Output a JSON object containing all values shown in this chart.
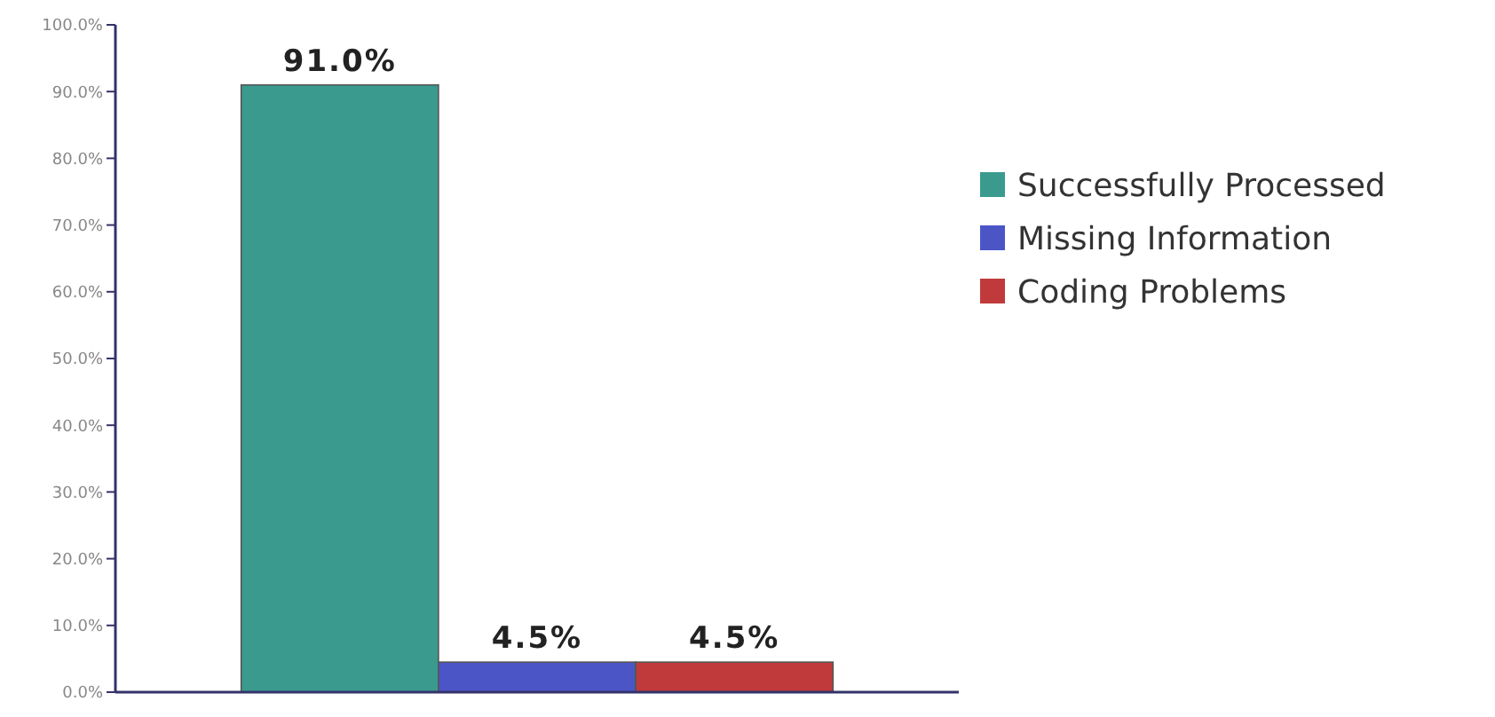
{
  "chart_data": {
    "type": "bar",
    "categories": [
      null
    ],
    "series": [
      {
        "name": "Successfully Processed",
        "color": "#3a9a8e",
        "values": [
          91.0
        ],
        "value_labels": [
          "91.0%"
        ]
      },
      {
        "name": "Missing Information",
        "color": "#4b55c6",
        "values": [
          4.5
        ],
        "value_labels": [
          "4.5%"
        ]
      },
      {
        "name": "Coding Problems",
        "color": "#c03a3c",
        "values": [
          4.5
        ],
        "value_labels": [
          "4.5%"
        ]
      }
    ],
    "ylim": [
      0,
      100
    ],
    "yticks": [
      {
        "value": 0,
        "label": "0.0%"
      },
      {
        "value": 10,
        "label": "10.0%"
      },
      {
        "value": 20,
        "label": "20.0%"
      },
      {
        "value": 30,
        "label": "30.0%"
      },
      {
        "value": 40,
        "label": "40.0%"
      },
      {
        "value": 50,
        "label": "50.0%"
      },
      {
        "value": 60,
        "label": "60.0%"
      },
      {
        "value": 70,
        "label": "70.0%"
      },
      {
        "value": 80,
        "label": "80.0%"
      },
      {
        "value": 90,
        "label": "90.0%"
      },
      {
        "value": 100,
        "label": "100.0%"
      }
    ],
    "grid": false,
    "legend": "right"
  }
}
